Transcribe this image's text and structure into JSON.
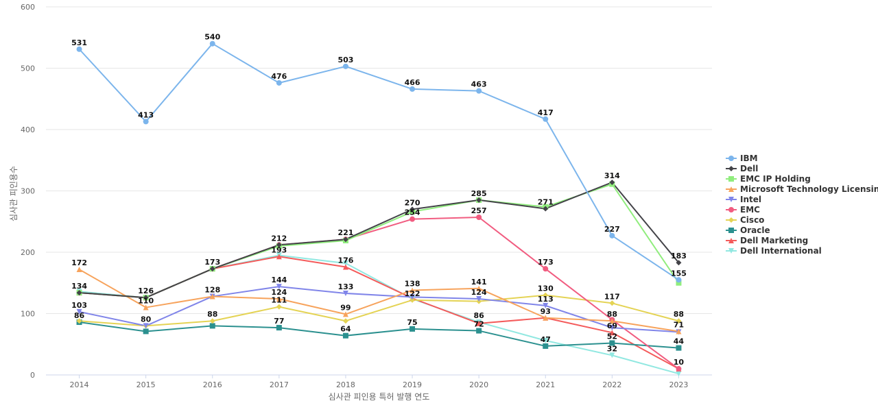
{
  "chart_data": {
    "type": "line",
    "xlabel": "심사관 피인용 특허 발행 연도",
    "ylabel": "심사관 피인용수",
    "ylim": [
      0,
      600
    ],
    "yticks": [
      0,
      100,
      200,
      300,
      400,
      500,
      600
    ],
    "grid": true,
    "legend_position": "right",
    "categories": [
      "2014",
      "2015",
      "2016",
      "2017",
      "2018",
      "2019",
      "2020",
      "2021",
      "2022",
      "2023"
    ],
    "series": [
      {
        "name": "IBM",
        "color": "#7cb5ec",
        "marker": "circle",
        "values": [
          531,
          413,
          540,
          476,
          503,
          466,
          463,
          417,
          227,
          155
        ],
        "labels": [
          "531",
          "413",
          "540",
          "476",
          "503",
          "466",
          "463",
          "417",
          "227",
          "155"
        ]
      },
      {
        "name": "Dell",
        "color": "#434348",
        "marker": "diamond",
        "values": [
          134,
          126,
          173,
          212,
          221,
          270,
          285,
          271,
          314,
          183
        ],
        "labels": [
          "",
          "",
          "",
          "",
          "",
          "270",
          "285",
          "271",
          "314",
          "183"
        ]
      },
      {
        "name": "EMC IP Holding",
        "color": "#90ed7d",
        "marker": "square",
        "values": [
          134,
          126,
          173,
          210,
          219,
          266,
          285,
          274,
          311,
          150
        ],
        "labels": [
          "",
          "",
          "",
          "",
          "",
          "",
          "",
          "",
          "",
          ""
        ]
      },
      {
        "name": "Microsoft Technology Licensing",
        "color": "#f7a35c",
        "marker": "triangle",
        "values": [
          172,
          110,
          128,
          124,
          99,
          138,
          141,
          93,
          88,
          71
        ],
        "labels": [
          "172",
          "110",
          "",
          "124",
          "99",
          "138",
          "141",
          "",
          "88",
          "71"
        ]
      },
      {
        "name": "Intel",
        "color": "#8085e9",
        "marker": "triangle-down",
        "values": [
          103,
          80,
          128,
          144,
          133,
          127,
          124,
          113,
          77,
          70
        ],
        "labels": [
          "103",
          "",
          "128",
          "144",
          "133",
          "",
          "124",
          "113",
          "",
          ""
        ]
      },
      {
        "name": "EMC",
        "color": "#f15c80",
        "marker": "circle",
        "values": [
          134,
          126,
          173,
          212,
          221,
          254,
          257,
          173,
          90,
          10
        ],
        "labels": [
          "",
          "",
          "",
          "212",
          "221",
          "254",
          "257",
          "173",
          "",
          "10"
        ]
      },
      {
        "name": "Cisco",
        "color": "#e4d354",
        "marker": "diamond",
        "values": [
          88,
          80,
          88,
          111,
          88,
          122,
          120,
          130,
          117,
          88
        ],
        "labels": [
          "",
          "80",
          "88",
          "111",
          "",
          "122",
          "",
          "130",
          "117",
          "88"
        ]
      },
      {
        "name": "Oracle",
        "color": "#2b908f",
        "marker": "square",
        "values": [
          86,
          71,
          80,
          77,
          64,
          75,
          72,
          47,
          52,
          44
        ],
        "labels": [
          "86",
          "",
          "",
          "77",
          "64",
          "75",
          "72",
          "47",
          "52",
          "44"
        ]
      },
      {
        "name": "Dell Marketing",
        "color": "#f45b5b",
        "marker": "triangle",
        "values": [
          134,
          126,
          173,
          193,
          176,
          125,
          84,
          93,
          69,
          10
        ],
        "labels": [
          "134",
          "126",
          "173",
          "193",
          "176",
          "",
          "",
          "93",
          "69",
          ""
        ]
      },
      {
        "name": "Dell International",
        "color": "#91e8e1",
        "marker": "triangle-down",
        "values": [
          136,
          126,
          173,
          195,
          182,
          124,
          86,
          56,
          32,
          2
        ],
        "labels": [
          "",
          "",
          "",
          "",
          "",
          "",
          "86",
          "",
          "32",
          ""
        ]
      }
    ]
  }
}
